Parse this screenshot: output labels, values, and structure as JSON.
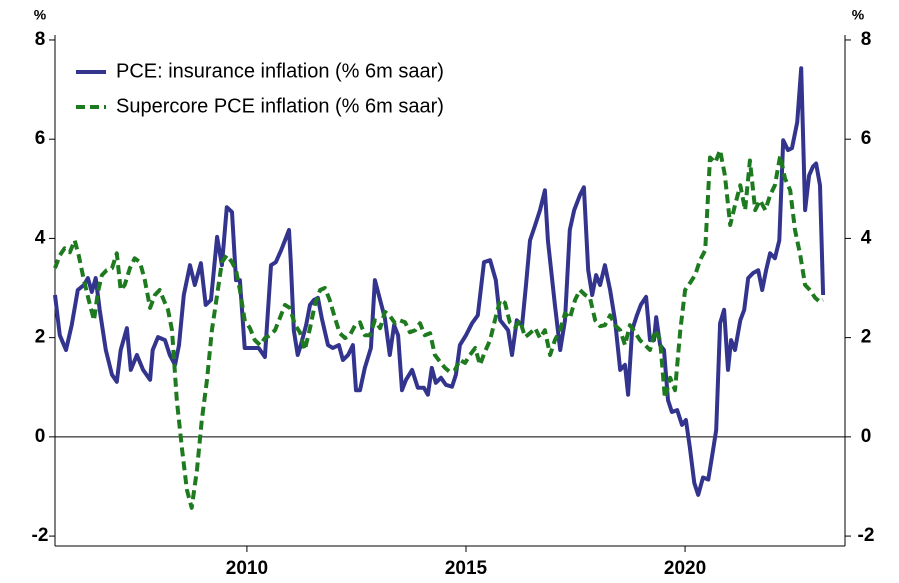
{
  "chart_data": {
    "type": "line",
    "y_label": "%",
    "y2_label": "%",
    "xlim": [
      2005.62,
      2023.65
    ],
    "xticks": [
      2010,
      2015,
      2020
    ],
    "ylim": [
      -2.2,
      8.1
    ],
    "yticks": [
      -2,
      0,
      2,
      4,
      6,
      8
    ],
    "y2lim": [
      -2.2,
      8.1
    ],
    "y2ticks": [
      -2,
      0,
      2,
      4,
      6,
      8
    ],
    "reference_line": 0,
    "legend": "top-left",
    "series": [
      {
        "name": "PCE: insurance inflation (% 6m saar)",
        "color": "#33348e",
        "dash": "solid",
        "x": [
          2005.62,
          2005.73,
          2005.87,
          2006.0,
          2006.14,
          2006.28,
          2006.37,
          2006.46,
          2006.55,
          2006.64,
          2006.78,
          2006.92,
          2007.03,
          2007.12,
          2007.26,
          2007.35,
          2007.49,
          2007.63,
          2007.79,
          2007.85,
          2007.97,
          2008.13,
          2008.24,
          2008.36,
          2008.45,
          2008.56,
          2008.7,
          2008.81,
          2008.95,
          2009.06,
          2009.18,
          2009.32,
          2009.43,
          2009.54,
          2009.66,
          2009.75,
          2009.84,
          2009.95,
          2010.14,
          2010.27,
          2010.41,
          2010.55,
          2010.66,
          2010.78,
          2010.87,
          2010.96,
          2011.0,
          2011.07,
          2011.16,
          2011.23,
          2011.35,
          2011.44,
          2011.53,
          2011.62,
          2011.71,
          2011.85,
          2011.96,
          2012.1,
          2012.19,
          2012.31,
          2012.42,
          2012.49,
          2012.58,
          2012.69,
          2012.83,
          2012.92,
          2013.04,
          2013.15,
          2013.26,
          2013.36,
          2013.45,
          2013.54,
          2013.63,
          2013.77,
          2013.9,
          2014.04,
          2014.13,
          2014.22,
          2014.31,
          2014.43,
          2014.54,
          2014.68,
          2014.77,
          2014.86,
          2015.0,
          2015.14,
          2015.27,
          2015.41,
          2015.55,
          2015.68,
          2015.78,
          2015.96,
          2016.05,
          2016.16,
          2016.28,
          2016.37,
          2016.46,
          2016.58,
          2016.69,
          2016.8,
          2016.87,
          2017.03,
          2017.15,
          2017.26,
          2017.37,
          2017.47,
          2017.6,
          2017.69,
          2017.79,
          2017.88,
          2017.97,
          2018.06,
          2018.17,
          2018.29,
          2018.4,
          2018.52,
          2018.63,
          2018.7,
          2018.79,
          2018.9,
          2018.99,
          2019.11,
          2019.2,
          2019.29,
          2019.34,
          2019.43,
          2019.52,
          2019.61,
          2019.7,
          2019.82,
          2019.93,
          2020.02,
          2020.11,
          2020.21,
          2020.3,
          2020.41,
          2020.53,
          2020.64,
          2020.71,
          2020.8,
          2020.89,
          2020.98,
          2021.05,
          2021.14,
          2021.26,
          2021.35,
          2021.44,
          2021.55,
          2021.67,
          2021.76,
          2021.85,
          2021.94,
          2022.05,
          2022.15,
          2022.24,
          2022.35,
          2022.44,
          2022.56,
          2022.65,
          2022.74,
          2022.83,
          2022.92,
          2022.99,
          2023.08,
          2023.15
        ],
        "values": [
          2.86,
          2.05,
          1.75,
          2.25,
          2.96,
          3.06,
          3.2,
          2.92,
          3.2,
          2.56,
          1.75,
          1.25,
          1.11,
          1.75,
          2.19,
          1.35,
          1.65,
          1.35,
          1.15,
          1.75,
          2.01,
          1.95,
          1.65,
          1.45,
          1.85,
          2.86,
          3.46,
          3.06,
          3.5,
          2.66,
          2.76,
          4.03,
          3.46,
          4.63,
          4.53,
          3.16,
          3.16,
          1.79,
          1.79,
          1.79,
          1.61,
          3.46,
          3.52,
          3.76,
          3.96,
          4.17,
          3.56,
          2.15,
          1.65,
          1.85,
          2.25,
          2.66,
          2.76,
          2.8,
          2.39,
          1.85,
          1.79,
          1.85,
          1.55,
          1.65,
          1.85,
          0.94,
          0.94,
          1.39,
          1.79,
          3.16,
          2.76,
          2.39,
          1.65,
          2.25,
          2.05,
          0.94,
          1.15,
          1.35,
          0.99,
          0.99,
          0.85,
          1.39,
          1.09,
          1.19,
          1.05,
          1.01,
          1.25,
          1.85,
          2.05,
          2.29,
          2.45,
          3.52,
          3.56,
          3.16,
          2.35,
          2.15,
          1.65,
          2.35,
          2.25,
          3.06,
          3.96,
          4.27,
          4.57,
          4.97,
          3.96,
          2.66,
          1.75,
          2.35,
          4.17,
          4.57,
          4.87,
          5.03,
          3.36,
          2.86,
          3.26,
          3.06,
          3.46,
          2.96,
          2.35,
          1.35,
          1.45,
          0.85,
          2.15,
          2.45,
          2.66,
          2.82,
          1.95,
          1.95,
          2.41,
          1.85,
          1.75,
          0.74,
          0.5,
          0.54,
          0.24,
          0.34,
          -0.22,
          -0.93,
          -1.17,
          -0.82,
          -0.86,
          -0.26,
          0.14,
          2.29,
          2.56,
          1.35,
          1.95,
          1.75,
          2.35,
          2.56,
          3.2,
          3.3,
          3.36,
          2.96,
          3.36,
          3.7,
          3.6,
          3.96,
          5.98,
          5.78,
          5.82,
          6.34,
          7.43,
          4.57,
          5.27,
          5.45,
          5.51,
          5.07,
          2.86
        ]
      },
      {
        "name": "Supercore PCE inflation (% 6m saar)",
        "color": "#1e7a1e",
        "dash": "dashed",
        "x": [
          2005.62,
          2005.73,
          2005.84,
          2005.96,
          2006.07,
          2006.16,
          2006.28,
          2006.39,
          2006.51,
          2006.6,
          2006.69,
          2006.8,
          2006.92,
          2007.03,
          2007.12,
          2007.21,
          2007.33,
          2007.44,
          2007.56,
          2007.67,
          2007.79,
          2007.9,
          2008.01,
          2008.1,
          2008.2,
          2008.29,
          2008.4,
          2008.52,
          2008.63,
          2008.74,
          2008.86,
          2008.97,
          2009.09,
          2009.2,
          2009.32,
          2009.43,
          2009.54,
          2009.66,
          2009.75,
          2009.84,
          2009.95,
          2010.07,
          2010.18,
          2010.3,
          2010.41,
          2010.53,
          2010.64,
          2010.75,
          2010.87,
          2010.98,
          2011.1,
          2011.21,
          2011.32,
          2011.44,
          2011.55,
          2011.67,
          2011.78,
          2011.89,
          2012.01,
          2012.12,
          2012.24,
          2012.35,
          2012.47,
          2012.58,
          2012.69,
          2012.81,
          2012.92,
          2013.04,
          2013.15,
          2013.26,
          2013.38,
          2013.49,
          2013.61,
          2013.72,
          2013.84,
          2013.95,
          2014.06,
          2014.18,
          2014.29,
          2014.41,
          2014.52,
          2014.63,
          2014.75,
          2014.86,
          2014.98,
          2015.09,
          2015.21,
          2015.32,
          2015.43,
          2015.55,
          2015.66,
          2015.78,
          2015.89,
          2016.0,
          2016.12,
          2016.23,
          2016.35,
          2016.46,
          2016.58,
          2016.69,
          2016.8,
          2016.92,
          2017.03,
          2017.15,
          2017.26,
          2017.37,
          2017.49,
          2017.6,
          2017.72,
          2017.83,
          2017.95,
          2018.06,
          2018.17,
          2018.29,
          2018.4,
          2018.52,
          2018.63,
          2018.74,
          2018.86,
          2018.97,
          2019.09,
          2019.2,
          2019.32,
          2019.43,
          2019.54,
          2019.66,
          2019.77,
          2019.89,
          2020.0,
          2020.11,
          2020.23,
          2020.34,
          2020.46,
          2020.57,
          2020.69,
          2020.8,
          2020.91,
          2021.03,
          2021.14,
          2021.26,
          2021.37,
          2021.48,
          2021.6,
          2021.71,
          2021.83,
          2021.94,
          2022.05,
          2022.17,
          2022.28,
          2022.4,
          2022.51,
          2022.63,
          2022.74,
          2022.85,
          2022.97,
          2023.08,
          2023.15
        ],
        "values": [
          3.4,
          3.66,
          3.8,
          3.72,
          3.96,
          3.66,
          3.16,
          2.76,
          2.35,
          2.92,
          3.26,
          3.36,
          3.4,
          3.7,
          2.96,
          3.06,
          3.4,
          3.6,
          3.52,
          3.16,
          2.6,
          2.86,
          2.96,
          2.76,
          2.56,
          2.15,
          0.74,
          -0.26,
          -1.07,
          -1.43,
          -0.66,
          0.34,
          1.15,
          2.15,
          2.86,
          3.52,
          3.66,
          3.52,
          3.36,
          2.96,
          2.35,
          2.19,
          1.95,
          1.85,
          1.99,
          2.05,
          2.15,
          2.39,
          2.66,
          2.6,
          2.25,
          2.11,
          1.75,
          2.19,
          2.66,
          2.96,
          3.0,
          2.76,
          2.39,
          2.09,
          1.99,
          2.05,
          2.25,
          2.31,
          2.05,
          2.05,
          2.35,
          2.19,
          2.52,
          2.44,
          2.29,
          2.35,
          2.31,
          2.11,
          2.15,
          2.29,
          2.05,
          2.09,
          1.65,
          1.51,
          1.39,
          1.31,
          1.35,
          1.55,
          1.49,
          1.65,
          1.79,
          1.45,
          1.71,
          1.95,
          2.35,
          2.76,
          2.7,
          2.31,
          2.21,
          2.35,
          2.01,
          2.09,
          2.19,
          1.99,
          2.15,
          1.65,
          1.95,
          2.15,
          2.49,
          2.39,
          2.76,
          2.96,
          2.86,
          2.8,
          2.35,
          2.23,
          2.25,
          2.45,
          2.25,
          2.15,
          1.85,
          2.25,
          2.11,
          1.95,
          1.85,
          1.75,
          2.15,
          1.95,
          0.78,
          1.19,
          0.94,
          2.15,
          2.96,
          3.1,
          3.26,
          3.56,
          3.76,
          5.63,
          5.53,
          5.78,
          5.27,
          4.27,
          4.67,
          5.07,
          4.57,
          5.57,
          4.57,
          4.77,
          4.57,
          4.87,
          5.07,
          5.67,
          5.21,
          4.97,
          4.17,
          3.66,
          3.06,
          2.96,
          2.8,
          2.72,
          2.76
        ]
      }
    ]
  }
}
